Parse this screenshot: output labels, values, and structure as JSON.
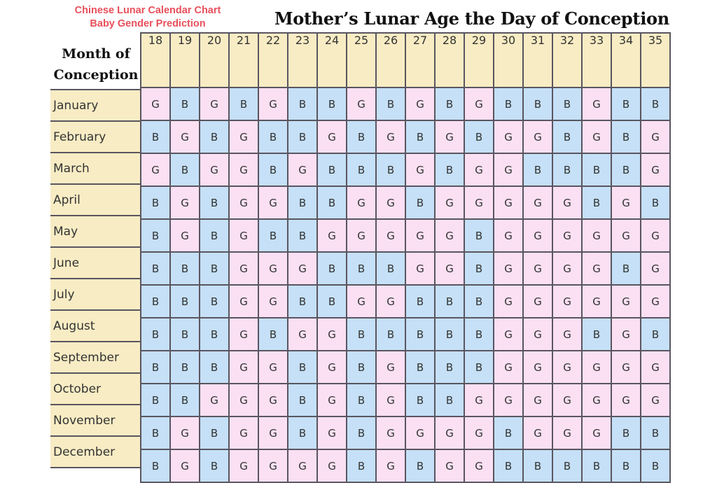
{
  "header": {
    "subtitle_line1": "Chinese Lunar Calendar Chart",
    "subtitle_line2": "Baby Gender Prediction",
    "title": "Mother’s Lunar Age the Day of Conception",
    "row_header_line1": "Month of",
    "row_header_line2": "Conception"
  },
  "colors": {
    "boy": "#c5e0f7",
    "girl": "#fbe0f3",
    "header": "#f8ecc4",
    "subtitle": "#e8505b"
  },
  "ages": [
    "18",
    "19",
    "20",
    "21",
    "22",
    "23",
    "24",
    "25",
    "26",
    "27",
    "28",
    "29",
    "30",
    "31",
    "32",
    "33",
    "34",
    "35"
  ],
  "rows": [
    {
      "month": "January",
      "cells": [
        "G",
        "B",
        "G",
        "B",
        "G",
        "B",
        "B",
        "G",
        "B",
        "G",
        "B",
        "G",
        "B",
        "B",
        "B",
        "G",
        "B",
        "B"
      ]
    },
    {
      "month": "February",
      "cells": [
        "B",
        "G",
        "B",
        "G",
        "B",
        "B",
        "G",
        "B",
        "G",
        "B",
        "G",
        "B",
        "G",
        "G",
        "B",
        "G",
        "B",
        "G"
      ]
    },
    {
      "month": "March",
      "cells": [
        "G",
        "B",
        "G",
        "G",
        "B",
        "G",
        "B",
        "B",
        "B",
        "G",
        "B",
        "G",
        "G",
        "B",
        "B",
        "B",
        "B",
        "G"
      ]
    },
    {
      "month": "April",
      "cells": [
        "B",
        "G",
        "B",
        "G",
        "G",
        "B",
        "B",
        "G",
        "G",
        "B",
        "G",
        "G",
        "G",
        "G",
        "G",
        "B",
        "G",
        "B"
      ]
    },
    {
      "month": "May",
      "cells": [
        "B",
        "G",
        "B",
        "G",
        "B",
        "B",
        "G",
        "G",
        "G",
        "G",
        "G",
        "B",
        "G",
        "G",
        "G",
        "G",
        "G",
        "G"
      ]
    },
    {
      "month": "June",
      "cells": [
        "B",
        "B",
        "B",
        "G",
        "G",
        "G",
        "B",
        "B",
        "B",
        "G",
        "G",
        "B",
        "G",
        "G",
        "G",
        "G",
        "B",
        "G"
      ]
    },
    {
      "month": "July",
      "cells": [
        "B",
        "B",
        "B",
        "G",
        "G",
        "B",
        "B",
        "G",
        "G",
        "B",
        "B",
        "B",
        "G",
        "G",
        "G",
        "G",
        "G",
        "G"
      ]
    },
    {
      "month": "August",
      "cells": [
        "B",
        "B",
        "B",
        "G",
        "B",
        "G",
        "G",
        "B",
        "B",
        "B",
        "B",
        "B",
        "G",
        "G",
        "G",
        "B",
        "G",
        "B"
      ]
    },
    {
      "month": "September",
      "cells": [
        "B",
        "B",
        "B",
        "G",
        "G",
        "B",
        "G",
        "B",
        "G",
        "B",
        "B",
        "B",
        "G",
        "G",
        "G",
        "G",
        "G",
        "G"
      ]
    },
    {
      "month": "October",
      "cells": [
        "B",
        "B",
        "G",
        "G",
        "G",
        "B",
        "G",
        "B",
        "G",
        "B",
        "B",
        "G",
        "G",
        "G",
        "G",
        "G",
        "G",
        "G"
      ]
    },
    {
      "month": "November",
      "cells": [
        "B",
        "G",
        "B",
        "G",
        "G",
        "B",
        "G",
        "B",
        "G",
        "G",
        "G",
        "G",
        "B",
        "G",
        "G",
        "G",
        "B",
        "B"
      ]
    },
    {
      "month": "December",
      "cells": [
        "B",
        "G",
        "B",
        "G",
        "G",
        "G",
        "G",
        "B",
        "G",
        "B",
        "G",
        "G",
        "B",
        "B",
        "B",
        "B",
        "B",
        "B"
      ]
    }
  ]
}
